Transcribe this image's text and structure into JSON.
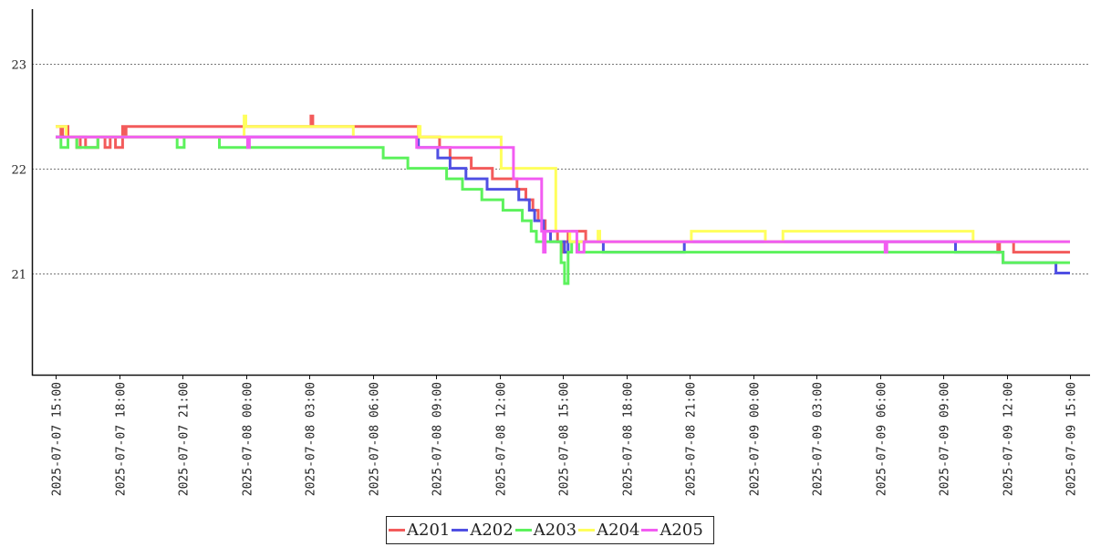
{
  "chart_data": {
    "type": "line",
    "title": "",
    "xlabel": "",
    "ylabel": "",
    "ylim": [
      20.03,
      23.52
    ],
    "yticks": [
      21,
      22,
      23
    ],
    "grid": "horizontal-dotted",
    "legend_position": "bottom-center",
    "x_ticks": [
      "2025-07-07 15:00",
      "2025-07-07 18:00",
      "2025-07-07 21:00",
      "2025-07-08 00:00",
      "2025-07-08 03:00",
      "2025-07-08 06:00",
      "2025-07-08 09:00",
      "2025-07-08 12:00",
      "2025-07-08 15:00",
      "2025-07-08 18:00",
      "2025-07-08 21:00",
      "2025-07-09 00:00",
      "2025-07-09 03:00",
      "2025-07-09 06:00",
      "2025-07-09 09:00",
      "2025-07-09 12:00",
      "2025-07-09 15:00"
    ],
    "series": [
      {
        "name": "A201",
        "color": "#f35b5b",
        "points": [
          [
            "2025-07-07 15:00",
            22.4
          ],
          [
            "2025-07-07 15:15",
            22.3
          ],
          [
            "2025-07-07 15:20",
            22.4
          ],
          [
            "2025-07-07 15:35",
            22.3
          ],
          [
            "2025-07-07 16:00",
            22.2
          ],
          [
            "2025-07-07 16:10",
            22.3
          ],
          [
            "2025-07-07 16:25",
            22.2
          ],
          [
            "2025-07-07 16:45",
            22.2
          ],
          [
            "2025-07-07 17:00",
            22.3
          ],
          [
            "2025-07-07 17:20",
            22.2
          ],
          [
            "2025-07-07 17:35",
            22.3
          ],
          [
            "2025-07-07 17:50",
            22.2
          ],
          [
            "2025-07-07 18:10",
            22.4
          ],
          [
            "2025-07-07 18:15",
            22.3
          ],
          [
            "2025-07-07 18:20",
            22.4
          ],
          [
            "2025-07-08 03:00",
            22.4
          ],
          [
            "2025-07-08 03:05",
            22.5
          ],
          [
            "2025-07-08 03:10",
            22.4
          ],
          [
            "2025-07-08 08:05",
            22.4
          ],
          [
            "2025-07-08 08:10",
            22.3
          ],
          [
            "2025-07-08 09:05",
            22.3
          ],
          [
            "2025-07-08 09:10",
            22.2
          ],
          [
            "2025-07-08 09:35",
            22.2
          ],
          [
            "2025-07-08 09:40",
            22.1
          ],
          [
            "2025-07-08 10:35",
            22.1
          ],
          [
            "2025-07-08 10:40",
            22.0
          ],
          [
            "2025-07-08 11:35",
            22.0
          ],
          [
            "2025-07-08 11:40",
            21.9
          ],
          [
            "2025-07-08 12:45",
            21.9
          ],
          [
            "2025-07-08 12:50",
            21.8
          ],
          [
            "2025-07-08 13:10",
            21.8
          ],
          [
            "2025-07-08 13:15",
            21.7
          ],
          [
            "2025-07-08 13:30",
            21.7
          ],
          [
            "2025-07-08 13:35",
            21.6
          ],
          [
            "2025-07-08 13:45",
            21.6
          ],
          [
            "2025-07-08 13:50",
            21.5
          ],
          [
            "2025-07-08 14:05",
            21.5
          ],
          [
            "2025-07-08 14:10",
            21.4
          ],
          [
            "2025-07-08 14:40",
            21.4
          ],
          [
            "2025-07-08 14:45",
            21.3
          ],
          [
            "2025-07-08 15:00",
            21.2
          ],
          [
            "2025-07-08 15:05",
            21.3
          ],
          [
            "2025-07-08 15:15",
            21.4
          ],
          [
            "2025-07-08 16:00",
            21.4
          ],
          [
            "2025-07-08 16:05",
            21.3
          ],
          [
            "2025-07-09 11:30",
            21.3
          ],
          [
            "2025-07-09 11:35",
            21.2
          ],
          [
            "2025-07-09 11:40",
            21.3
          ],
          [
            "2025-07-09 12:15",
            21.3
          ],
          [
            "2025-07-09 12:20",
            21.2
          ],
          [
            "2025-07-09 15:00",
            21.2
          ]
        ]
      },
      {
        "name": "A202",
        "color": "#5050e3",
        "points": [
          [
            "2025-07-07 15:00",
            22.3
          ],
          [
            "2025-07-08 08:05",
            22.3
          ],
          [
            "2025-07-08 08:10",
            22.2
          ],
          [
            "2025-07-08 09:00",
            22.2
          ],
          [
            "2025-07-08 09:05",
            22.1
          ],
          [
            "2025-07-08 09:35",
            22.1
          ],
          [
            "2025-07-08 09:40",
            22.0
          ],
          [
            "2025-07-08 10:20",
            22.0
          ],
          [
            "2025-07-08 10:25",
            21.9
          ],
          [
            "2025-07-08 11:20",
            21.9
          ],
          [
            "2025-07-08 11:25",
            21.8
          ],
          [
            "2025-07-08 12:50",
            21.8
          ],
          [
            "2025-07-08 12:55",
            21.7
          ],
          [
            "2025-07-08 13:20",
            21.7
          ],
          [
            "2025-07-08 13:25",
            21.6
          ],
          [
            "2025-07-08 13:35",
            21.6
          ],
          [
            "2025-07-08 13:40",
            21.5
          ],
          [
            "2025-07-08 14:00",
            21.5
          ],
          [
            "2025-07-08 14:05",
            21.4
          ],
          [
            "2025-07-08 14:20",
            21.4
          ],
          [
            "2025-07-08 14:25",
            21.3
          ],
          [
            "2025-07-08 15:00",
            21.3
          ],
          [
            "2025-07-08 15:05",
            21.2
          ],
          [
            "2025-07-08 15:15",
            21.3
          ],
          [
            "2025-07-08 16:50",
            21.3
          ],
          [
            "2025-07-08 16:55",
            21.2
          ],
          [
            "2025-07-08 20:40",
            21.2
          ],
          [
            "2025-07-08 20:45",
            21.3
          ],
          [
            "2025-07-09 09:30",
            21.3
          ],
          [
            "2025-07-09 09:35",
            21.2
          ],
          [
            "2025-07-09 11:45",
            21.2
          ],
          [
            "2025-07-09 11:50",
            21.1
          ],
          [
            "2025-07-09 14:15",
            21.1
          ],
          [
            "2025-07-09 14:20",
            21.0
          ],
          [
            "2025-07-09 15:00",
            21.0
          ]
        ]
      },
      {
        "name": "A203",
        "color": "#5cf25c",
        "points": [
          [
            "2025-07-07 15:00",
            22.3
          ],
          [
            "2025-07-07 15:15",
            22.2
          ],
          [
            "2025-07-07 15:35",
            22.3
          ],
          [
            "2025-07-07 16:00",
            22.2
          ],
          [
            "2025-07-07 16:50",
            22.2
          ],
          [
            "2025-07-07 17:00",
            22.3
          ],
          [
            "2025-07-07 20:40",
            22.3
          ],
          [
            "2025-07-07 20:45",
            22.2
          ],
          [
            "2025-07-07 21:00",
            22.2
          ],
          [
            "2025-07-07 21:05",
            22.3
          ],
          [
            "2025-07-07 22:40",
            22.3
          ],
          [
            "2025-07-07 22:45",
            22.2
          ],
          [
            "2025-07-08 06:25",
            22.2
          ],
          [
            "2025-07-08 06:30",
            22.1
          ],
          [
            "2025-07-08 07:35",
            22.1
          ],
          [
            "2025-07-08 07:40",
            22.0
          ],
          [
            "2025-07-08 08:35",
            22.0
          ],
          [
            "2025-07-08 08:40",
            22.0
          ],
          [
            "2025-07-08 09:25",
            22.0
          ],
          [
            "2025-07-08 09:30",
            21.9
          ],
          [
            "2025-07-08 10:10",
            21.9
          ],
          [
            "2025-07-08 10:15",
            21.8
          ],
          [
            "2025-07-08 11:05",
            21.8
          ],
          [
            "2025-07-08 11:10",
            21.7
          ],
          [
            "2025-07-08 12:05",
            21.7
          ],
          [
            "2025-07-08 12:10",
            21.6
          ],
          [
            "2025-07-08 13:00",
            21.6
          ],
          [
            "2025-07-08 13:05",
            21.5
          ],
          [
            "2025-07-08 13:25",
            21.5
          ],
          [
            "2025-07-08 13:30",
            21.4
          ],
          [
            "2025-07-08 13:40",
            21.4
          ],
          [
            "2025-07-08 13:45",
            21.3
          ],
          [
            "2025-07-08 14:35",
            21.3
          ],
          [
            "2025-07-08 14:55",
            21.1
          ],
          [
            "2025-07-08 15:05",
            20.9
          ],
          [
            "2025-07-08 15:15",
            21.2
          ],
          [
            "2025-07-08 15:25",
            21.3
          ],
          [
            "2025-07-08 15:45",
            21.2
          ],
          [
            "2025-07-09 11:45",
            21.2
          ],
          [
            "2025-07-09 11:50",
            21.1
          ],
          [
            "2025-07-09 15:00",
            21.1
          ]
        ]
      },
      {
        "name": "A204",
        "color": "#ffff5c",
        "points": [
          [
            "2025-07-07 15:00",
            22.4
          ],
          [
            "2025-07-07 15:25",
            22.4
          ],
          [
            "2025-07-07 15:30",
            22.3
          ],
          [
            "2025-07-07 23:50",
            22.3
          ],
          [
            "2025-07-07 23:55",
            22.5
          ],
          [
            "2025-07-08 00:00",
            22.4
          ],
          [
            "2025-07-08 05:00",
            22.4
          ],
          [
            "2025-07-08 05:05",
            22.3
          ],
          [
            "2025-07-08 07:50",
            22.3
          ],
          [
            "2025-07-08 08:10",
            22.4
          ],
          [
            "2025-07-08 08:15",
            22.3
          ],
          [
            "2025-07-08 12:05",
            22.0
          ],
          [
            "2025-07-08 14:40",
            21.4
          ],
          [
            "2025-07-08 15:20",
            21.3
          ],
          [
            "2025-07-08 16:40",
            21.4
          ],
          [
            "2025-07-08 16:45",
            21.3
          ],
          [
            "2025-07-08 21:00",
            21.3
          ],
          [
            "2025-07-08 21:05",
            21.4
          ],
          [
            "2025-07-09 00:30",
            21.4
          ],
          [
            "2025-07-09 00:35",
            21.3
          ],
          [
            "2025-07-09 01:20",
            21.3
          ],
          [
            "2025-07-09 01:25",
            21.4
          ],
          [
            "2025-07-09 10:20",
            21.4
          ],
          [
            "2025-07-09 10:25",
            21.3
          ],
          [
            "2025-07-09 15:00",
            21.3
          ]
        ]
      },
      {
        "name": "A205",
        "color": "#f25cf2",
        "points": [
          [
            "2025-07-07 15:00",
            22.3
          ],
          [
            "2025-07-07 18:00",
            22.3
          ],
          [
            "2025-07-08 00:00",
            22.3
          ],
          [
            "2025-07-08 00:05",
            22.2
          ],
          [
            "2025-07-08 00:10",
            22.3
          ],
          [
            "2025-07-08 08:00",
            22.3
          ],
          [
            "2025-07-08 08:05",
            22.2
          ],
          [
            "2025-07-08 12:40",
            21.9
          ],
          [
            "2025-07-08 14:00",
            21.4
          ],
          [
            "2025-07-08 14:05",
            21.2
          ],
          [
            "2025-07-08 14:10",
            21.4
          ],
          [
            "2025-07-08 15:40",
            21.2
          ],
          [
            "2025-07-08 16:00",
            21.3
          ],
          [
            "2025-07-09 04:00",
            21.3
          ],
          [
            "2025-07-09 06:15",
            21.2
          ],
          [
            "2025-07-09 06:20",
            21.3
          ],
          [
            "2025-07-09 15:00",
            21.3
          ]
        ]
      }
    ]
  }
}
